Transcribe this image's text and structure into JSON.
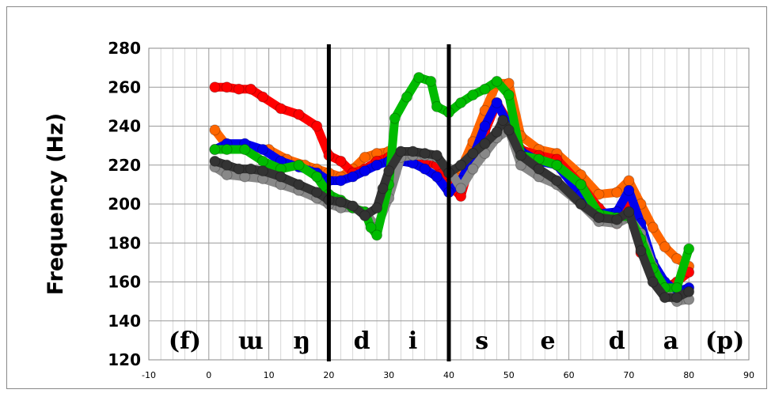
{
  "chart_data": {
    "type": "line",
    "ylabel": "Frequency (Hz)",
    "xlabel": "",
    "xlim": [
      -10,
      90
    ],
    "ylim": [
      120,
      280
    ],
    "xticks": [
      "-10",
      "0",
      "10",
      "20",
      "30",
      "40",
      "50",
      "60",
      "70",
      "80",
      "90"
    ],
    "yticks": [
      "120",
      "140",
      "160",
      "180",
      "200",
      "220",
      "240",
      "260",
      "280"
    ],
    "grid": true,
    "legend": "none",
    "boundaries": [
      20,
      40
    ],
    "segments": [
      {
        "label": "(f)",
        "x": -4
      },
      {
        "label": "ɯ",
        "x": 7
      },
      {
        "label": "ŋ",
        "x": 15.5
      },
      {
        "label": "d",
        "x": 25.5
      },
      {
        "label": "i",
        "x": 34
      },
      {
        "label": "s",
        "x": 45.5
      },
      {
        "label": "e",
        "x": 56.5
      },
      {
        "label": "d",
        "x": 68
      },
      {
        "label": "a",
        "x": 77
      },
      {
        "label": "(p)",
        "x": 86
      }
    ],
    "series": [
      {
        "color": "#ff6600",
        "x": [
          1,
          3,
          6,
          10,
          13,
          16,
          18,
          20,
          22,
          24,
          26,
          28,
          30,
          32,
          34,
          36,
          38,
          40,
          42,
          44,
          46,
          48,
          50,
          52,
          55,
          58,
          62,
          65,
          68,
          70,
          72,
          74,
          76,
          78,
          80
        ],
        "y": [
          238,
          230,
          229,
          228,
          223,
          220,
          218,
          216,
          214,
          218,
          224,
          226,
          227,
          225,
          224,
          223,
          221,
          208,
          218,
          232,
          248,
          262,
          262,
          235,
          228,
          226,
          215,
          205,
          206,
          212,
          200,
          188,
          178,
          172,
          168
        ]
      },
      {
        "color": "#ff0000",
        "x": [
          1,
          3,
          5,
          7,
          9,
          12,
          15,
          18,
          20,
          22,
          24,
          26,
          28,
          30,
          32,
          34,
          36,
          38,
          40,
          42,
          44,
          46,
          48,
          50,
          52,
          55,
          58,
          62,
          65,
          68,
          70,
          72,
          74,
          76,
          78,
          80
        ],
        "y": [
          260,
          260,
          259,
          259,
          255,
          249,
          246,
          240,
          225,
          222,
          216,
          218,
          222,
          224,
          224,
          222,
          222,
          220,
          210,
          204,
          225,
          237,
          252,
          242,
          228,
          225,
          223,
          210,
          198,
          190,
          205,
          175,
          165,
          157,
          160,
          165
        ]
      },
      {
        "color": "#0000ee",
        "x": [
          1,
          3,
          6,
          9,
          12,
          15,
          18,
          20,
          22,
          24,
          26,
          28,
          30,
          32,
          34,
          36,
          38,
          40,
          42,
          44,
          46,
          48,
          50,
          52,
          55,
          58,
          62,
          65,
          68,
          70,
          72,
          74,
          76,
          78,
          80
        ],
        "y": [
          228,
          231,
          231,
          228,
          222,
          219,
          216,
          212,
          212,
          214,
          217,
          220,
          222,
          222,
          221,
          218,
          214,
          206,
          212,
          224,
          240,
          252,
          240,
          227,
          222,
          220,
          205,
          195,
          196,
          207,
          190,
          170,
          160,
          155,
          157
        ]
      },
      {
        "color": "#888888",
        "x": [
          1,
          3,
          6,
          9,
          12,
          15,
          18,
          20,
          22,
          24,
          26,
          28,
          30,
          32,
          34,
          36,
          38,
          40,
          42,
          44,
          46,
          48,
          50,
          52,
          55,
          58,
          62,
          65,
          68,
          70,
          72,
          74,
          76,
          78,
          80
        ],
        "y": [
          219,
          215,
          214,
          213,
          210,
          207,
          203,
          200,
          198,
          198,
          196,
          188,
          203,
          224,
          225,
          225,
          224,
          218,
          208,
          218,
          226,
          234,
          238,
          220,
          214,
          210,
          200,
          191,
          190,
          193,
          185,
          168,
          155,
          150,
          151
        ]
      },
      {
        "color": "#00bb00",
        "x": [
          1,
          3,
          6,
          9,
          12,
          15,
          18,
          20,
          22,
          24,
          26,
          27,
          28,
          30,
          31,
          33,
          35,
          37,
          38,
          40,
          42,
          44,
          46,
          48,
          50,
          52,
          55,
          58,
          62,
          65,
          68,
          70,
          72,
          74,
          76,
          78,
          80
        ],
        "y": [
          228,
          228,
          228,
          222,
          218,
          220,
          214,
          205,
          202,
          198,
          196,
          188,
          184,
          210,
          244,
          255,
          265,
          263,
          250,
          247,
          252,
          256,
          259,
          263,
          256,
          225,
          223,
          220,
          210,
          195,
          193,
          194,
          182,
          167,
          157,
          157,
          177
        ]
      },
      {
        "color": "#333333",
        "x": [
          1,
          3,
          5,
          7,
          9,
          12,
          15,
          18,
          20,
          22,
          24,
          26,
          28,
          29,
          30,
          32,
          34,
          36,
          38,
          40,
          42,
          44,
          46,
          48,
          49,
          50,
          52,
          55,
          58,
          62,
          65,
          68,
          70,
          72,
          74,
          76,
          78,
          80
        ],
        "y": [
          222,
          220,
          218,
          218,
          217,
          214,
          210,
          206,
          202,
          201,
          199,
          194,
          198,
          208,
          217,
          227,
          227,
          226,
          225,
          216,
          220,
          226,
          231,
          237,
          243,
          238,
          225,
          218,
          212,
          200,
          193,
          192,
          196,
          176,
          160,
          152,
          152,
          155
        ]
      }
    ]
  }
}
